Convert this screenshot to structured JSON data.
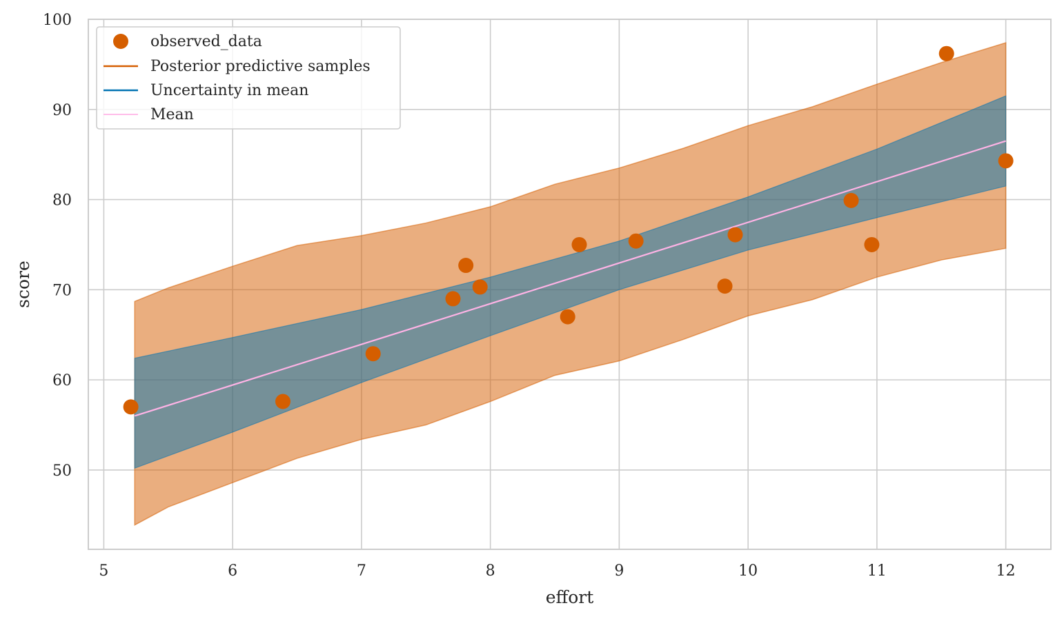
{
  "chart_data": {
    "type": "scatter",
    "xlabel": "effort",
    "ylabel": "score",
    "xlim": [
      4.88,
      12.35
    ],
    "ylim": [
      41.2,
      100
    ],
    "x_ticks": [
      5,
      6,
      7,
      8,
      9,
      10,
      11,
      12
    ],
    "y_ticks": [
      50,
      60,
      70,
      80,
      90,
      100
    ],
    "grid": true,
    "legend_position": "top-left",
    "series": [
      {
        "name": "observed_data",
        "kind": "points",
        "color": "#d55e00",
        "x": [
          5.21,
          6.39,
          7.09,
          7.71,
          7.81,
          7.92,
          8.6,
          8.69,
          9.13,
          9.82,
          9.9,
          10.8,
          10.96,
          11.54,
          12.0
        ],
        "y": [
          57.0,
          57.6,
          62.9,
          69.0,
          72.7,
          70.3,
          67.0,
          75.0,
          75.4,
          70.4,
          76.1,
          79.9,
          75.0,
          96.2,
          84.3
        ]
      },
      {
        "name": "Posterior predictive samples",
        "kind": "band",
        "color": "#d55e00",
        "x": [
          5.24,
          5.5,
          6.0,
          6.5,
          7.0,
          7.5,
          8.0,
          8.5,
          9.0,
          9.5,
          10.0,
          10.5,
          11.0,
          11.5,
          12.0
        ],
        "lower": [
          43.9,
          45.9,
          48.6,
          51.3,
          53.4,
          55.0,
          57.6,
          60.5,
          62.1,
          64.5,
          67.1,
          68.9,
          71.4,
          73.3,
          74.6
        ],
        "upper": [
          68.7,
          70.2,
          72.6,
          74.9,
          76.0,
          77.4,
          79.2,
          81.7,
          83.5,
          85.7,
          88.2,
          90.3,
          92.8,
          95.2,
          97.4
        ]
      },
      {
        "name": "Uncertainty in mean",
        "kind": "band",
        "color": "#0072b2",
        "x": [
          5.24,
          6.0,
          7.0,
          8.0,
          9.0,
          10.0,
          11.0,
          12.0
        ],
        "lower": [
          50.2,
          54.2,
          59.7,
          64.9,
          70.0,
          74.4,
          78.0,
          81.5
        ],
        "upper": [
          62.4,
          64.7,
          67.8,
          71.4,
          75.4,
          80.3,
          85.6,
          91.5
        ]
      },
      {
        "name": "Mean",
        "kind": "line",
        "color": "#ffb3e6",
        "x": [
          5.24,
          12.0
        ],
        "y": [
          56.0,
          86.5
        ]
      }
    ]
  }
}
